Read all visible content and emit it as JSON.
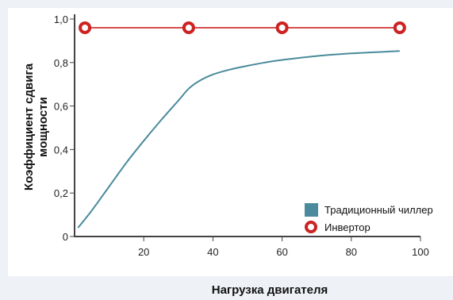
{
  "chart_data": {
    "type": "line",
    "xlabel": "Нагрузка двигателя",
    "ylabel_lines": [
      "Коэффициент сдвига",
      "мощности"
    ],
    "xlim": [
      0,
      100
    ],
    "ylim": [
      0,
      1.0
    ],
    "x_ticks": [
      20,
      40,
      60,
      80,
      100
    ],
    "x_tick_labels": [
      "20",
      "40",
      "60",
      "80",
      "100"
    ],
    "y_ticks": [
      0,
      0.2,
      0.4,
      0.6,
      0.8,
      1.0
    ],
    "y_tick_labels": [
      "0",
      "0,2",
      "0,4",
      "0,6",
      "0,8",
      "1,0"
    ],
    "grid": false,
    "legend_position": "bottom-right",
    "series": [
      {
        "name": "Традиционный чиллер",
        "color": "#4a8a9c",
        "marker": "square-swatch",
        "x": [
          1,
          5,
          10,
          15,
          20,
          25,
          30,
          33,
          36,
          40,
          45,
          50,
          55,
          60,
          70,
          80,
          90,
          94
        ],
        "y": [
          0.04,
          0.12,
          0.23,
          0.34,
          0.44,
          0.535,
          0.625,
          0.68,
          0.715,
          0.745,
          0.768,
          0.785,
          0.8,
          0.812,
          0.83,
          0.842,
          0.85,
          0.853
        ]
      },
      {
        "name": "Инвертор",
        "color": "#cc2222",
        "marker": "ring",
        "x": [
          3,
          33,
          60,
          94
        ],
        "y": [
          0.96,
          0.96,
          0.96,
          0.96
        ]
      }
    ]
  }
}
